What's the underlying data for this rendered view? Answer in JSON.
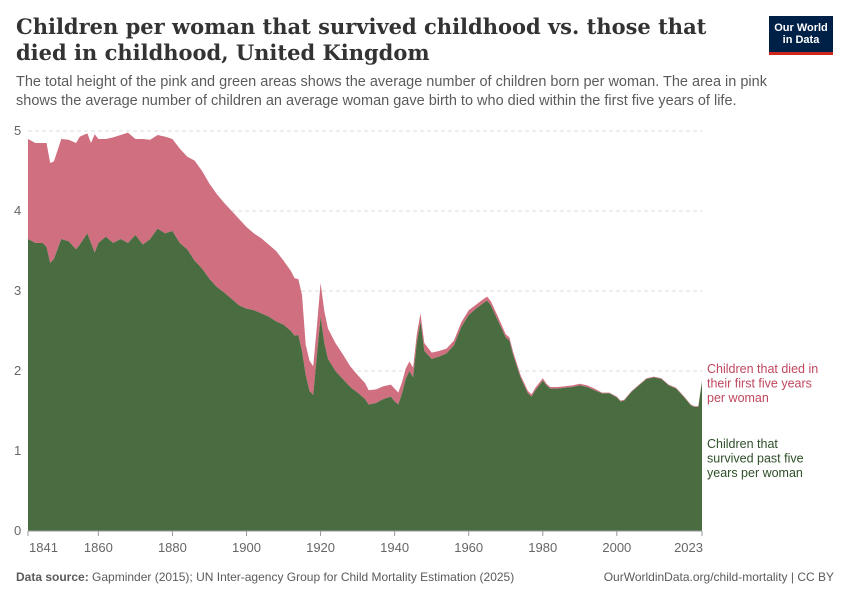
{
  "header": {
    "title": "Children per woman that survived childhood vs. those that died in childhood, United Kingdom",
    "subtitle": "The total height of the pink and green areas shows the average number of children born per woman. The area in pink shows the average number of children an average woman gave birth to who died within the first five years of life.",
    "logo_line1": "Our World",
    "logo_line2": "in Data"
  },
  "footer": {
    "source_label": "Data source:",
    "source_text": " Gapminder (2015); UN Inter-agency Group for Child Mortality Estimation (2025)",
    "right_text": "OurWorldinData.org/child-mortality | CC BY"
  },
  "colors": {
    "died": "#cf6f80",
    "survived": "#496d40",
    "died_label": "#c0475e",
    "survived_label": "#2e4f28",
    "grid": "#dddddd",
    "tick_text": "#666666",
    "logo_bg": "#002147",
    "logo_accent": "#ce261e"
  },
  "chart_data": {
    "type": "area",
    "stacked": true,
    "title": "Children per woman that survived childhood vs. those that died in childhood, United Kingdom",
    "ylim": [
      0,
      5
    ],
    "yticks": [
      0,
      1,
      2,
      3,
      4,
      5
    ],
    "xlim": [
      1841,
      2023
    ],
    "xticks": [
      "1841",
      "1860",
      "1880",
      "1900",
      "1920",
      "1940",
      "1960",
      "1980",
      "2000",
      "2023"
    ],
    "grid": "horizontal dashed",
    "x": [
      1841,
      1843,
      1845,
      1846,
      1847,
      1848,
      1850,
      1852,
      1854,
      1855,
      1857,
      1858,
      1859,
      1860,
      1862,
      1864,
      1866,
      1868,
      1870,
      1872,
      1874,
      1876,
      1878,
      1880,
      1882,
      1884,
      1886,
      1888,
      1890,
      1892,
      1894,
      1896,
      1898,
      1900,
      1902,
      1904,
      1906,
      1908,
      1910,
      1912,
      1913,
      1914,
      1915,
      1916,
      1917,
      1918,
      1919,
      1920,
      1921,
      1922,
      1924,
      1926,
      1928,
      1930,
      1932,
      1933,
      1935,
      1937,
      1939,
      1940,
      1941,
      1942,
      1943,
      1944,
      1945,
      1946,
      1947,
      1948,
      1950,
      1952,
      1954,
      1956,
      1958,
      1960,
      1962,
      1964,
      1965,
      1966,
      1968,
      1970,
      1971,
      1972,
      1974,
      1976,
      1977,
      1978,
      1980,
      1981,
      1982,
      1984,
      1986,
      1988,
      1990,
      1992,
      1994,
      1996,
      1998,
      2000,
      2001,
      2002,
      2004,
      2006,
      2008,
      2010,
      2012,
      2014,
      2016,
      2018,
      2020,
      2021,
      2022,
      2023
    ],
    "series": [
      {
        "name": "Children that survived past five years per woman",
        "values": [
          3.65,
          3.6,
          3.6,
          3.55,
          3.35,
          3.4,
          3.65,
          3.62,
          3.52,
          3.58,
          3.72,
          3.6,
          3.48,
          3.6,
          3.68,
          3.6,
          3.65,
          3.6,
          3.7,
          3.58,
          3.65,
          3.78,
          3.72,
          3.75,
          3.6,
          3.52,
          3.38,
          3.28,
          3.15,
          3.05,
          2.98,
          2.9,
          2.82,
          2.78,
          2.76,
          2.72,
          2.68,
          2.62,
          2.58,
          2.5,
          2.44,
          2.45,
          2.25,
          1.95,
          1.75,
          1.7,
          2.2,
          2.68,
          2.35,
          2.15,
          2.0,
          1.9,
          1.8,
          1.73,
          1.65,
          1.58,
          1.6,
          1.65,
          1.68,
          1.62,
          1.58,
          1.72,
          1.9,
          2.0,
          1.92,
          2.35,
          2.62,
          2.25,
          2.15,
          2.18,
          2.22,
          2.32,
          2.55,
          2.7,
          2.78,
          2.85,
          2.88,
          2.82,
          2.62,
          2.42,
          2.38,
          2.2,
          1.92,
          1.72,
          1.68,
          1.76,
          1.88,
          1.82,
          1.78,
          1.78,
          1.79,
          1.8,
          1.82,
          1.8,
          1.76,
          1.72,
          1.72,
          1.67,
          1.62,
          1.63,
          1.74,
          1.82,
          1.9,
          1.92,
          1.9,
          1.82,
          1.78,
          1.68,
          1.57,
          1.55,
          1.55,
          1.87
        ]
      },
      {
        "name": "Children that died in their first five years per woman",
        "values": [
          1.25,
          1.25,
          1.25,
          1.3,
          1.25,
          1.22,
          1.25,
          1.27,
          1.33,
          1.35,
          1.25,
          1.25,
          1.48,
          1.3,
          1.22,
          1.32,
          1.3,
          1.38,
          1.2,
          1.32,
          1.24,
          1.17,
          1.21,
          1.15,
          1.18,
          1.16,
          1.25,
          1.22,
          1.19,
          1.16,
          1.12,
          1.1,
          1.08,
          1.02,
          0.96,
          0.94,
          0.9,
          0.88,
          0.8,
          0.75,
          0.72,
          0.7,
          0.7,
          0.38,
          0.38,
          0.36,
          0.36,
          0.42,
          0.4,
          0.38,
          0.35,
          0.31,
          0.26,
          0.22,
          0.2,
          0.18,
          0.17,
          0.16,
          0.15,
          0.16,
          0.15,
          0.14,
          0.13,
          0.12,
          0.12,
          0.11,
          0.1,
          0.1,
          0.08,
          0.07,
          0.06,
          0.06,
          0.06,
          0.06,
          0.05,
          0.05,
          0.05,
          0.05,
          0.05,
          0.04,
          0.04,
          0.04,
          0.03,
          0.03,
          0.03,
          0.03,
          0.03,
          0.02,
          0.02,
          0.02,
          0.02,
          0.02,
          0.02,
          0.02,
          0.02,
          0.01,
          0.01,
          0.01,
          0.01,
          0.01,
          0.01,
          0.01,
          0.01,
          0.01,
          0.01,
          0.01,
          0.01,
          0.01,
          0.01,
          0.01,
          0.01,
          0.01
        ]
      }
    ],
    "labels": {
      "died": "Children that died in their first five years per woman",
      "survived": "Children that survived past five years per woman"
    }
  }
}
